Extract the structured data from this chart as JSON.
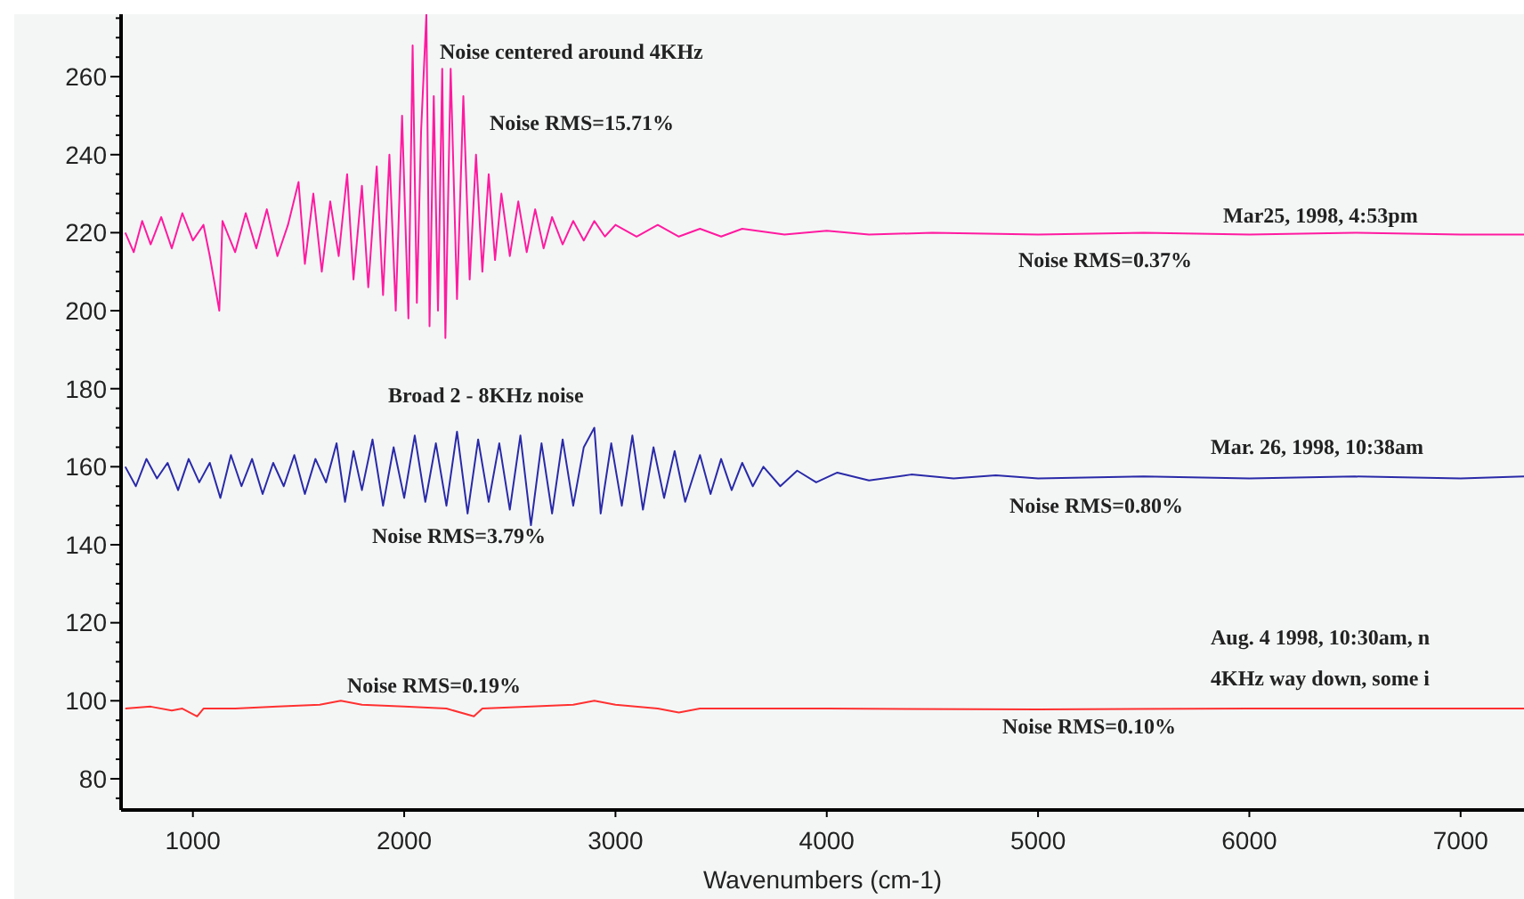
{
  "chart_data": {
    "type": "line",
    "xlabel": "Wavenumbers (cm-1)",
    "xlim": [
      660,
      7300
    ],
    "xticks": [
      1000,
      2000,
      3000,
      4000,
      5000,
      6000,
      7000
    ],
    "ylim": [
      72,
      276
    ],
    "yticks": [
      {
        "value": 75,
        "label": null
      },
      80,
      {
        "value": 85,
        "label": null
      },
      {
        "value": 90,
        "label": null
      },
      {
        "value": 95,
        "label": null
      },
      100,
      {
        "value": 105,
        "label": null
      },
      {
        "value": 110,
        "label": null
      },
      {
        "value": 115,
        "label": null
      },
      120,
      {
        "value": 125,
        "label": null
      },
      {
        "value": 130,
        "label": null
      },
      {
        "value": 135,
        "label": null
      },
      140,
      {
        "value": 145,
        "label": null
      },
      {
        "value": 150,
        "label": null
      },
      {
        "value": 155,
        "label": null
      },
      160,
      {
        "value": 165,
        "label": null
      },
      {
        "value": 170,
        "label": null
      },
      {
        "value": 175,
        "label": null
      },
      180,
      {
        "value": 185,
        "label": null
      },
      {
        "value": 190,
        "label": null
      },
      {
        "value": 195,
        "label": null
      },
      200,
      {
        "value": 205,
        "label": null
      },
      {
        "value": 210,
        "label": null
      },
      {
        "value": 215,
        "label": null
      },
      220,
      {
        "value": 225,
        "label": null
      },
      {
        "value": 230,
        "label": null
      },
      {
        "value": 235,
        "label": null
      },
      240,
      {
        "value": 245,
        "label": null
      },
      {
        "value": 250,
        "label": null
      },
      {
        "value": 255,
        "label": null
      },
      260,
      {
        "value": 265,
        "label": null
      },
      {
        "value": 270,
        "label": null
      },
      {
        "value": 275,
        "label": null
      }
    ],
    "grid": false,
    "marker": "none",
    "line_style": "solid",
    "series": [
      {
        "color": "#ff1aa0",
        "x": [
          680,
          720,
          760,
          800,
          850,
          900,
          950,
          1000,
          1050,
          1080,
          1125,
          1140,
          1200,
          1250,
          1300,
          1350,
          1400,
          1450,
          1500,
          1530,
          1570,
          1610,
          1650,
          1690,
          1730,
          1760,
          1800,
          1830,
          1870,
          1900,
          1930,
          1960,
          1990,
          2020,
          2040,
          2060,
          2080,
          2105,
          2120,
          2140,
          2160,
          2180,
          2195,
          2220,
          2250,
          2280,
          2310,
          2340,
          2370,
          2400,
          2430,
          2460,
          2500,
          2540,
          2580,
          2620,
          2660,
          2700,
          2750,
          2800,
          2850,
          2900,
          2950,
          3000,
          3100,
          3200,
          3300,
          3400,
          3500,
          3600,
          3800,
          4000,
          4200,
          4500,
          5000,
          5500,
          6000,
          6500,
          7000,
          7300
        ],
        "values": [
          220,
          215,
          223,
          217,
          224,
          216,
          225,
          218,
          222,
          214,
          200,
          223,
          215,
          225,
          216,
          226,
          214,
          222,
          233,
          212,
          230,
          210,
          228,
          214,
          235,
          208,
          232,
          206,
          237,
          204,
          240,
          200,
          250,
          198,
          268,
          202,
          246,
          276,
          196,
          255,
          200,
          262,
          193,
          262,
          203,
          255,
          208,
          240,
          210,
          235,
          213,
          230,
          214,
          228,
          215,
          226,
          216,
          224,
          217,
          223,
          218,
          223,
          219,
          222,
          219,
          222,
          219,
          221,
          219,
          221,
          219.5,
          220.5,
          219.5,
          220,
          219.5,
          220,
          219.5,
          220,
          219.5,
          219.5
        ]
      },
      {
        "color": "#2a2aa8",
        "x": [
          680,
          730,
          780,
          830,
          880,
          930,
          980,
          1030,
          1080,
          1130,
          1180,
          1230,
          1280,
          1330,
          1380,
          1430,
          1480,
          1530,
          1580,
          1630,
          1680,
          1720,
          1760,
          1800,
          1850,
          1900,
          1950,
          2000,
          2050,
          2100,
          2150,
          2200,
          2250,
          2300,
          2350,
          2400,
          2450,
          2500,
          2550,
          2600,
          2650,
          2700,
          2750,
          2800,
          2850,
          2900,
          2930,
          2980,
          3030,
          3080,
          3130,
          3180,
          3230,
          3280,
          3330,
          3400,
          3450,
          3500,
          3550,
          3600,
          3650,
          3700,
          3780,
          3860,
          3950,
          4050,
          4200,
          4400,
          4600,
          4800,
          5000,
          5500,
          6000,
          6500,
          7000,
          7300
        ],
        "values": [
          160,
          155,
          162,
          157,
          161,
          154,
          162,
          156,
          161,
          152,
          163,
          155,
          162,
          153,
          161,
          155,
          163,
          153,
          162,
          156,
          166,
          151,
          164,
          154,
          167,
          150,
          165,
          152,
          168,
          151,
          166,
          150,
          169,
          148,
          167,
          151,
          166,
          149,
          168,
          145,
          166,
          148,
          167,
          150,
          165,
          170,
          148,
          166,
          150,
          168,
          149,
          165,
          152,
          164,
          151,
          163,
          153,
          162,
          154,
          161,
          155,
          160,
          155,
          159,
          156,
          158.5,
          156.5,
          158,
          157,
          157.8,
          157,
          157.5,
          157,
          157.5,
          157,
          157.5
        ]
      },
      {
        "color": "#ff3030",
        "x": [
          680,
          800,
          900,
          950,
          1020,
          1050,
          1200,
          1400,
          1600,
          1700,
          1800,
          2000,
          2200,
          2330,
          2370,
          2600,
          2800,
          2900,
          3000,
          3200,
          3300,
          3400,
          3600,
          4000,
          5000,
          6000,
          7300
        ],
        "values": [
          98,
          98.5,
          97.5,
          98,
          96,
          98,
          98,
          98.5,
          99,
          100,
          99,
          98.5,
          98,
          96,
          98,
          98.5,
          99,
          100,
          99,
          98,
          97,
          98,
          98,
          98,
          97.8,
          98,
          98
        ]
      }
    ],
    "annotations": [
      "Noise centered around 4KHz",
      "Noise RMS=15.71%",
      "Mar25, 1998, 4:53pm",
      "Noise RMS=0.37%",
      "Broad 2 - 8KHz noise",
      "Mar. 26, 1998, 10:38am",
      "Noise RMS=3.79%",
      "Noise RMS=0.80%",
      "Aug. 4 1998, 10:30am, n",
      "4KHz way down, some i",
      "Noise RMS=0.19%",
      "Noise RMS=0.10%"
    ]
  }
}
